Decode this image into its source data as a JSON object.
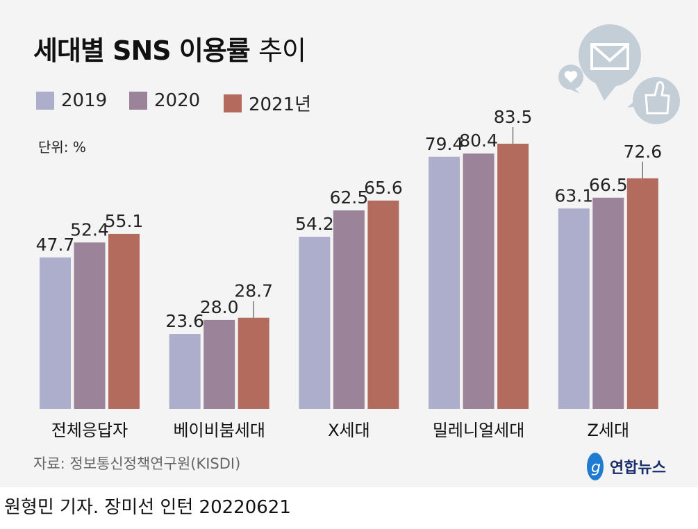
{
  "title_bold": "세대별 SNS 이용률",
  "title_light": "추이",
  "unit": "단위: %",
  "source": "자료: 정보통신정책연구원(KISDI)",
  "credit": "원형민 기자. 장미선 인턴  20220621",
  "logo_text": "연합뉴스",
  "chart_data": {
    "type": "bar",
    "categories": [
      "전체응답자",
      "베이비붐세대",
      "X세대",
      "밀레니얼세대",
      "Z세대"
    ],
    "series": [
      {
        "name": "2019",
        "color": "#adaecb",
        "values": [
          47.7,
          23.6,
          54.2,
          79.4,
          63.1
        ]
      },
      {
        "name": "2020",
        "color": "#9b8399",
        "values": [
          52.4,
          28.0,
          62.5,
          80.4,
          66.5
        ]
      },
      {
        "name": "2021년",
        "color": "#b36b5e",
        "values": [
          55.1,
          28.7,
          65.6,
          83.5,
          72.6
        ]
      }
    ],
    "ylim": [
      0,
      83.5
    ],
    "grid": false,
    "legend": "top-left"
  }
}
